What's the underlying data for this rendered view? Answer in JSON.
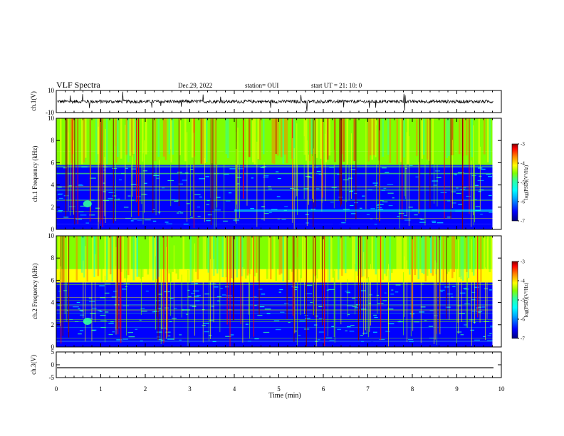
{
  "header": {
    "title": "VLF Spectra",
    "date": "Dec.29, 2022",
    "station": "station= OUI",
    "start": "start  UT =   21: 10: 0"
  },
  "colors": {
    "background": "#ffffff",
    "axes": "#000000",
    "colormap": [
      "#00007f",
      "#0000ff",
      "#00b0ff",
      "#00ffff",
      "#30ff9f",
      "#7fff00",
      "#ffff00",
      "#ff8000",
      "#ff0000",
      "#800000"
    ]
  },
  "chart_data": [
    {
      "id": "ch1",
      "type": "line",
      "ylabel": "ch.1(V)",
      "ylim": [
        -10,
        10
      ],
      "yticks": [
        "10",
        "-10"
      ],
      "xlim": [
        0,
        10
      ],
      "series": [
        {
          "trace": "ch.1 waveform",
          "baseline": 0,
          "approx_amplitude": 1.5
        }
      ]
    },
    {
      "id": "ch1-spectrogram",
      "type": "heatmap",
      "ylabel": "ch.1\nFrequency (kHz)",
      "ylim": [
        0,
        10
      ],
      "yticks": [
        "0",
        "2",
        "4",
        "6",
        "8",
        "10"
      ],
      "xlim": [
        0,
        9.8
      ],
      "colorbar": {
        "label": "log(PSD)(V²/Hz)",
        "range": [
          -7,
          -3
        ],
        "ticks": [
          "-3",
          "-4",
          "-5",
          "-6",
          "-7"
        ]
      },
      "bands": [
        {
          "f_kHz": [
            0,
            0.5
          ],
          "level": -6.5
        },
        {
          "f_kHz": [
            0.5,
            5.8
          ],
          "level": -6.4
        },
        {
          "f_kHz": [
            5.8,
            7.0
          ],
          "level": -5.0
        },
        {
          "f_kHz": [
            7.0,
            10
          ],
          "level": -4.7
        }
      ],
      "features": [
        {
          "t_min": 0.7,
          "f_kHz": 2.3,
          "level": -5.2
        },
        {
          "t_min": [
            4.0,
            9.8
          ],
          "f_kHz": 1.7,
          "level": -5.6
        }
      ]
    },
    {
      "id": "ch2-spectrogram",
      "type": "heatmap",
      "ylabel": "ch.2\nFrequency (kHz)",
      "ylim": [
        0,
        10
      ],
      "yticks": [
        "0",
        "2",
        "4",
        "6",
        "8",
        "10"
      ],
      "xlim": [
        0,
        9.8
      ],
      "colorbar": {
        "label": "log(PSD)(V²/Hz)",
        "range": [
          -7,
          -3
        ],
        "ticks": [
          "-3",
          "-4",
          "-5",
          "-6",
          "-7"
        ]
      },
      "bands": [
        {
          "f_kHz": [
            0,
            0.5
          ],
          "level": -6.5
        },
        {
          "f_kHz": [
            0.5,
            5.8
          ],
          "level": -6.3
        },
        {
          "f_kHz": [
            5.8,
            7.0
          ],
          "level": -4.6
        },
        {
          "f_kHz": [
            7.0,
            10
          ],
          "level": -4.8
        }
      ],
      "features": [
        {
          "t_min": 0.7,
          "f_kHz": 2.3,
          "level": -5.2
        }
      ]
    },
    {
      "id": "ch3",
      "type": "line",
      "ylabel": "ch.3(V)",
      "ylim": [
        -5,
        5
      ],
      "yticks": [
        "5",
        "0",
        "-5"
      ],
      "xlim": [
        0,
        10
      ],
      "series": [
        {
          "trace": "ch.3 waveform",
          "constant": -1.2
        }
      ]
    }
  ],
  "xaxis": {
    "label": "Time (min)",
    "ticks": [
      "0",
      "1",
      "2",
      "3",
      "4",
      "5",
      "6",
      "7",
      "8",
      "9",
      "10"
    ]
  }
}
